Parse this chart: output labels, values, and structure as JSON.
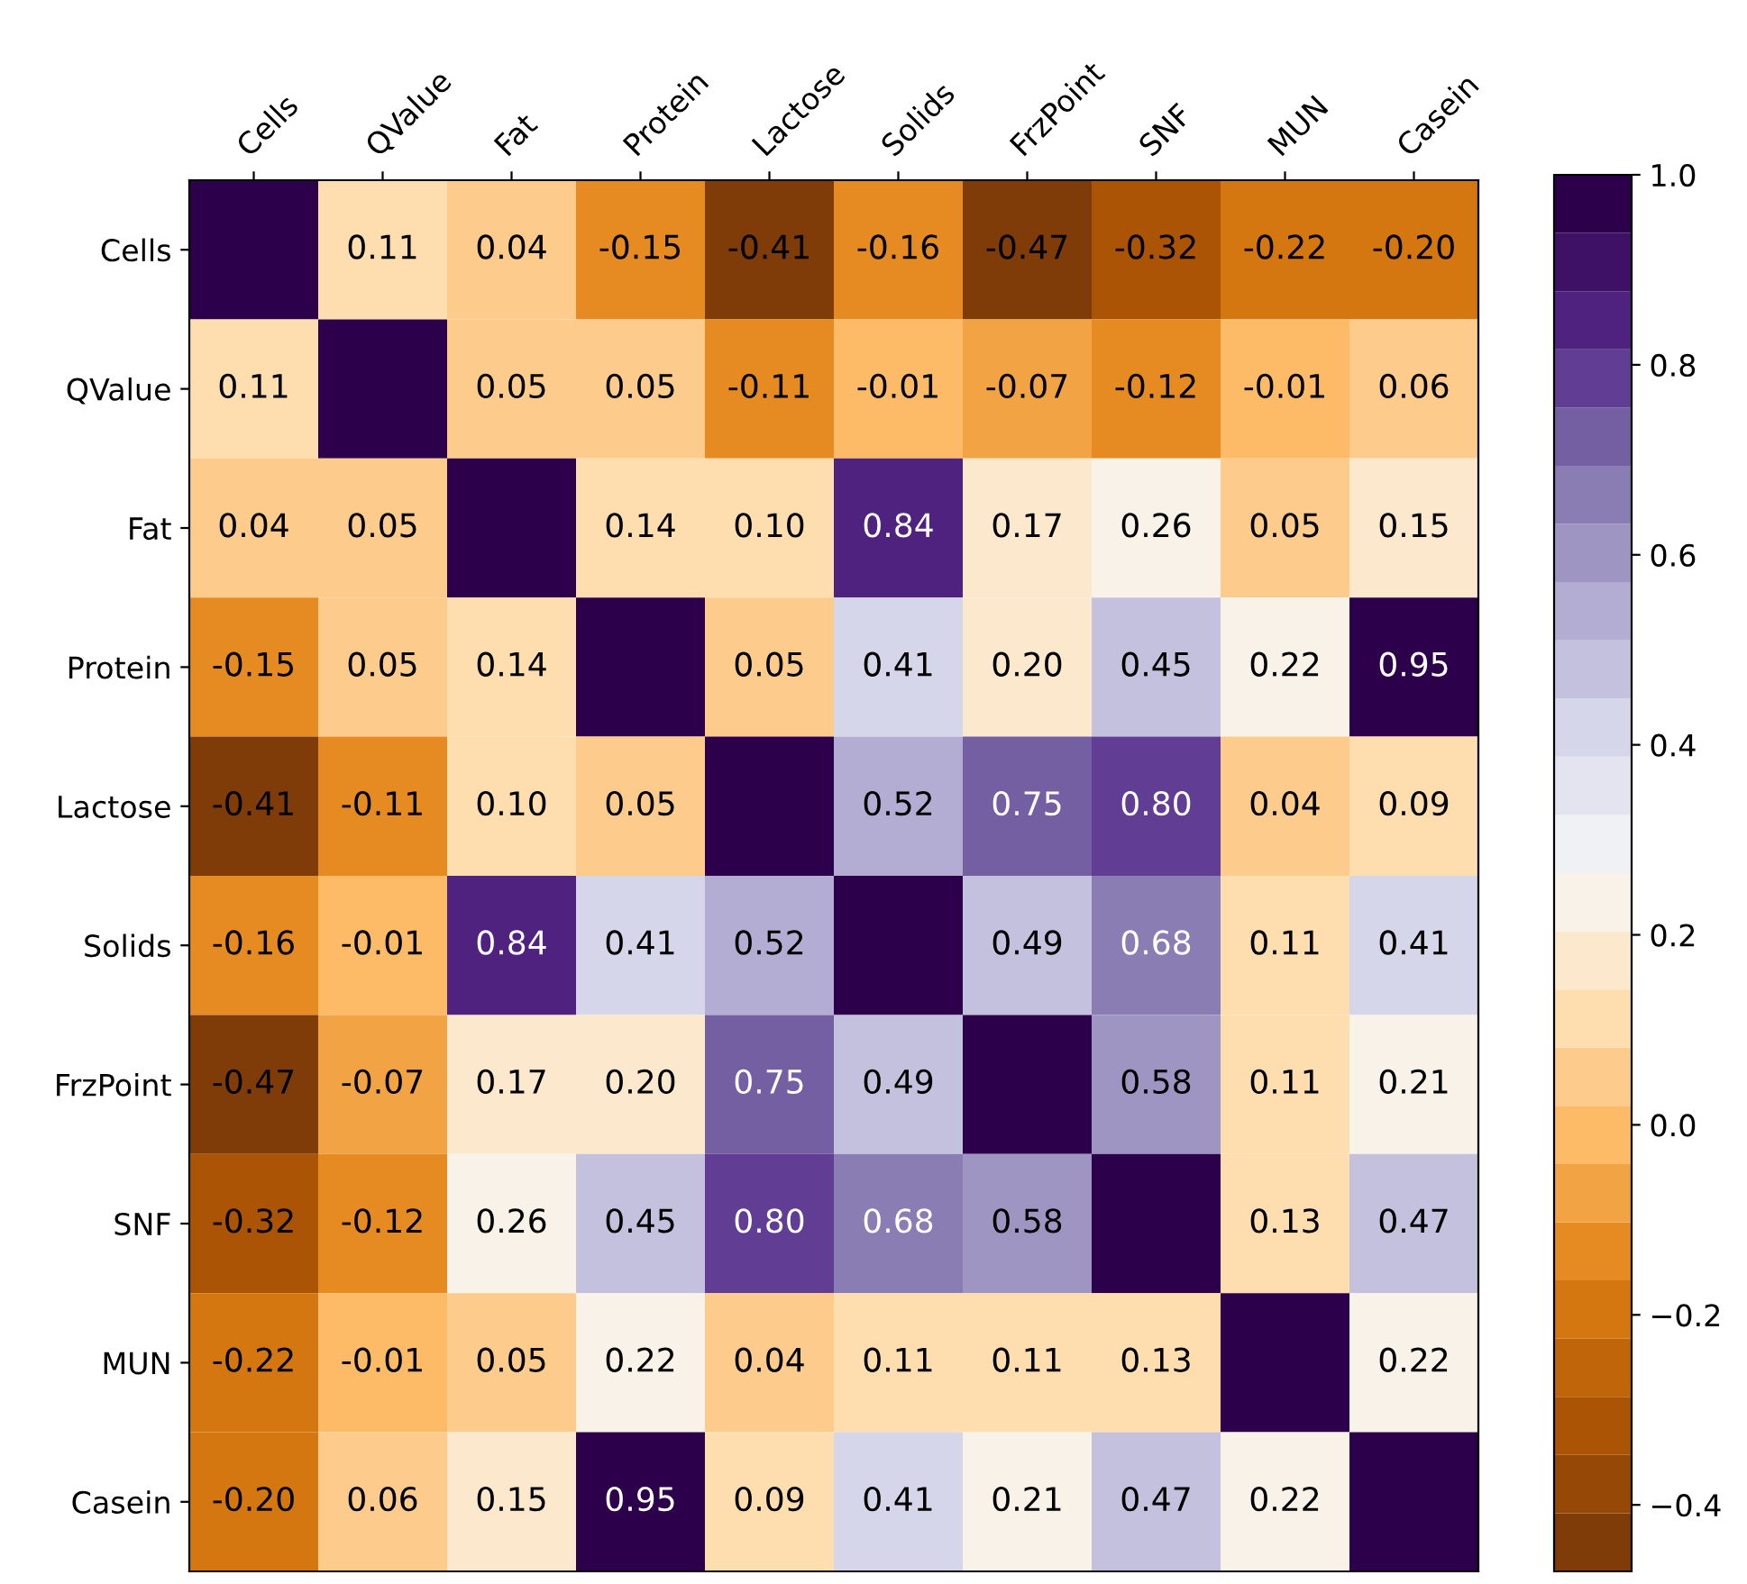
{
  "chart_data": {
    "type": "heatmap",
    "categories": [
      "Cells",
      "QValue",
      "Fat",
      "Protein",
      "Lactose",
      "Solids",
      "FrzPoint",
      "SNF",
      "MUN",
      "Casein"
    ],
    "y_categories": [
      "Cells",
      "QValue",
      "Fat",
      "Protein",
      "Lactose",
      "Solids",
      "FrzPoint",
      "SNF",
      "MUN",
      "Casein"
    ],
    "cells": [
      [
        1.0,
        0.11,
        0.04,
        -0.15,
        -0.41,
        -0.16,
        -0.47,
        -0.32,
        -0.22,
        -0.2
      ],
      [
        0.11,
        1.0,
        0.05,
        0.05,
        -0.11,
        -0.01,
        -0.07,
        -0.12,
        -0.01,
        0.06
      ],
      [
        0.04,
        0.05,
        1.0,
        0.14,
        0.1,
        0.84,
        0.17,
        0.26,
        0.05,
        0.15
      ],
      [
        -0.15,
        0.05,
        0.14,
        1.0,
        0.05,
        0.41,
        0.2,
        0.45,
        0.22,
        0.95
      ],
      [
        -0.41,
        -0.11,
        0.1,
        0.05,
        1.0,
        0.52,
        0.75,
        0.8,
        0.04,
        0.09
      ],
      [
        -0.16,
        -0.01,
        0.84,
        0.41,
        0.52,
        1.0,
        0.49,
        0.68,
        0.11,
        0.41
      ],
      [
        -0.47,
        -0.07,
        0.17,
        0.2,
        0.75,
        0.49,
        1.0,
        0.58,
        0.11,
        0.21
      ],
      [
        -0.32,
        -0.12,
        0.26,
        0.45,
        0.8,
        0.68,
        0.58,
        1.0,
        0.13,
        0.47
      ],
      [
        -0.22,
        -0.01,
        0.05,
        0.22,
        0.04,
        0.11,
        0.11,
        0.13,
        1.0,
        0.22
      ],
      [
        -0.2,
        0.06,
        0.15,
        0.95,
        0.09,
        0.41,
        0.21,
        0.47,
        0.22,
        1.0
      ]
    ],
    "cell_labels": [
      [
        null,
        "0.11",
        "0.04",
        "-0.15",
        "-0.41",
        "-0.16",
        "-0.47",
        "-0.32",
        "-0.22",
        "-0.20"
      ],
      [
        "0.11",
        null,
        "0.05",
        "0.05",
        "-0.11",
        "-0.01",
        "-0.07",
        "-0.12",
        "-0.01",
        "0.06"
      ],
      [
        "0.04",
        "0.05",
        null,
        "0.14",
        "0.10",
        "0.84",
        "0.17",
        "0.26",
        "0.05",
        "0.15"
      ],
      [
        "-0.15",
        "0.05",
        "0.14",
        null,
        "0.05",
        "0.41",
        "0.20",
        "0.45",
        "0.22",
        "0.95"
      ],
      [
        "-0.41",
        "-0.11",
        "0.10",
        "0.05",
        null,
        "0.52",
        "0.75",
        "0.80",
        "0.04",
        "0.09"
      ],
      [
        "-0.16",
        "-0.01",
        "0.84",
        "0.41",
        "0.52",
        null,
        "0.49",
        "0.68",
        "0.11",
        "0.41"
      ],
      [
        "-0.47",
        "-0.07",
        "0.17",
        "0.20",
        "0.75",
        "0.49",
        null,
        "0.58",
        "0.11",
        "0.21"
      ],
      [
        "-0.32",
        "-0.12",
        "0.26",
        "0.45",
        "0.80",
        "0.68",
        "0.58",
        null,
        "0.13",
        "0.47"
      ],
      [
        "-0.22",
        "-0.01",
        "0.05",
        "0.22",
        "0.04",
        "0.11",
        "0.11",
        "0.13",
        null,
        "0.22"
      ],
      [
        "-0.20",
        "0.06",
        "0.15",
        "0.95",
        "0.09",
        "0.41",
        "0.21",
        "0.47",
        "0.22",
        null
      ]
    ],
    "clim": [
      -0.47,
      1.0
    ],
    "cticks": [
      {
        "value": -0.4,
        "label": "−0.4"
      },
      {
        "value": -0.2,
        "label": "−0.2"
      },
      {
        "value": 0.0,
        "label": "0.0"
      },
      {
        "value": 0.2,
        "label": "0.2"
      },
      {
        "value": 0.4,
        "label": "0.4"
      },
      {
        "value": 0.6,
        "label": "0.6"
      },
      {
        "value": 0.8,
        "label": "0.8"
      },
      {
        "value": 1.0,
        "label": "1.0"
      }
    ]
  }
}
